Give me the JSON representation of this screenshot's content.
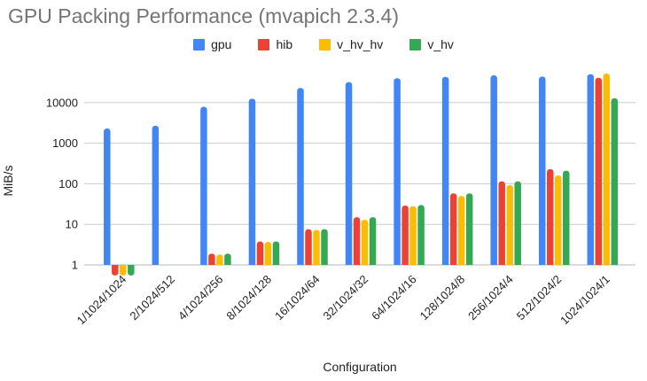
{
  "chart_data": {
    "type": "bar",
    "title": "GPU Packing Performance (mvapich 2.3.4)",
    "xlabel": "Configuration",
    "ylabel": "MiB/s",
    "y_scale": "log",
    "y_ticks": [
      1,
      10,
      100,
      1000,
      10000
    ],
    "ylim": [
      0.5,
      60000
    ],
    "grid": "horizontal",
    "legend_position": "top-center",
    "categories": [
      "1/1024/1024",
      "2/1024/512",
      "4/1024/256",
      "8/1024/128",
      "16/1024/64",
      "32/1024/32",
      "64/1024/16",
      "128/1024/8",
      "256/1024/4",
      "512/1024/2",
      "1024/1024/1"
    ],
    "series": [
      {
        "name": "gpu",
        "color": "#4285F4",
        "values": [
          2300,
          2700,
          7900,
          12500,
          23000,
          32000,
          40000,
          43000,
          47000,
          44000,
          50000
        ]
      },
      {
        "name": "hib",
        "color": "#EA4335",
        "values": [
          0.55,
          null,
          1.9,
          3.8,
          7.6,
          15,
          29,
          58,
          115,
          230,
          41000
        ]
      },
      {
        "name": "v_hv_hv",
        "color": "#FBBC04",
        "values": [
          0.55,
          null,
          1.8,
          3.7,
          7.3,
          13,
          28,
          50,
          93,
          160,
          52000
        ]
      },
      {
        "name": "v_hv",
        "color": "#34A853",
        "values": [
          0.55,
          null,
          1.9,
          3.8,
          7.6,
          15,
          30,
          58,
          115,
          210,
          12800
        ]
      }
    ],
    "colors": {
      "title_text": "#757575",
      "axis_text": "#222222",
      "gridline": "#cccccc",
      "baseline": "#b7b7b7"
    }
  }
}
